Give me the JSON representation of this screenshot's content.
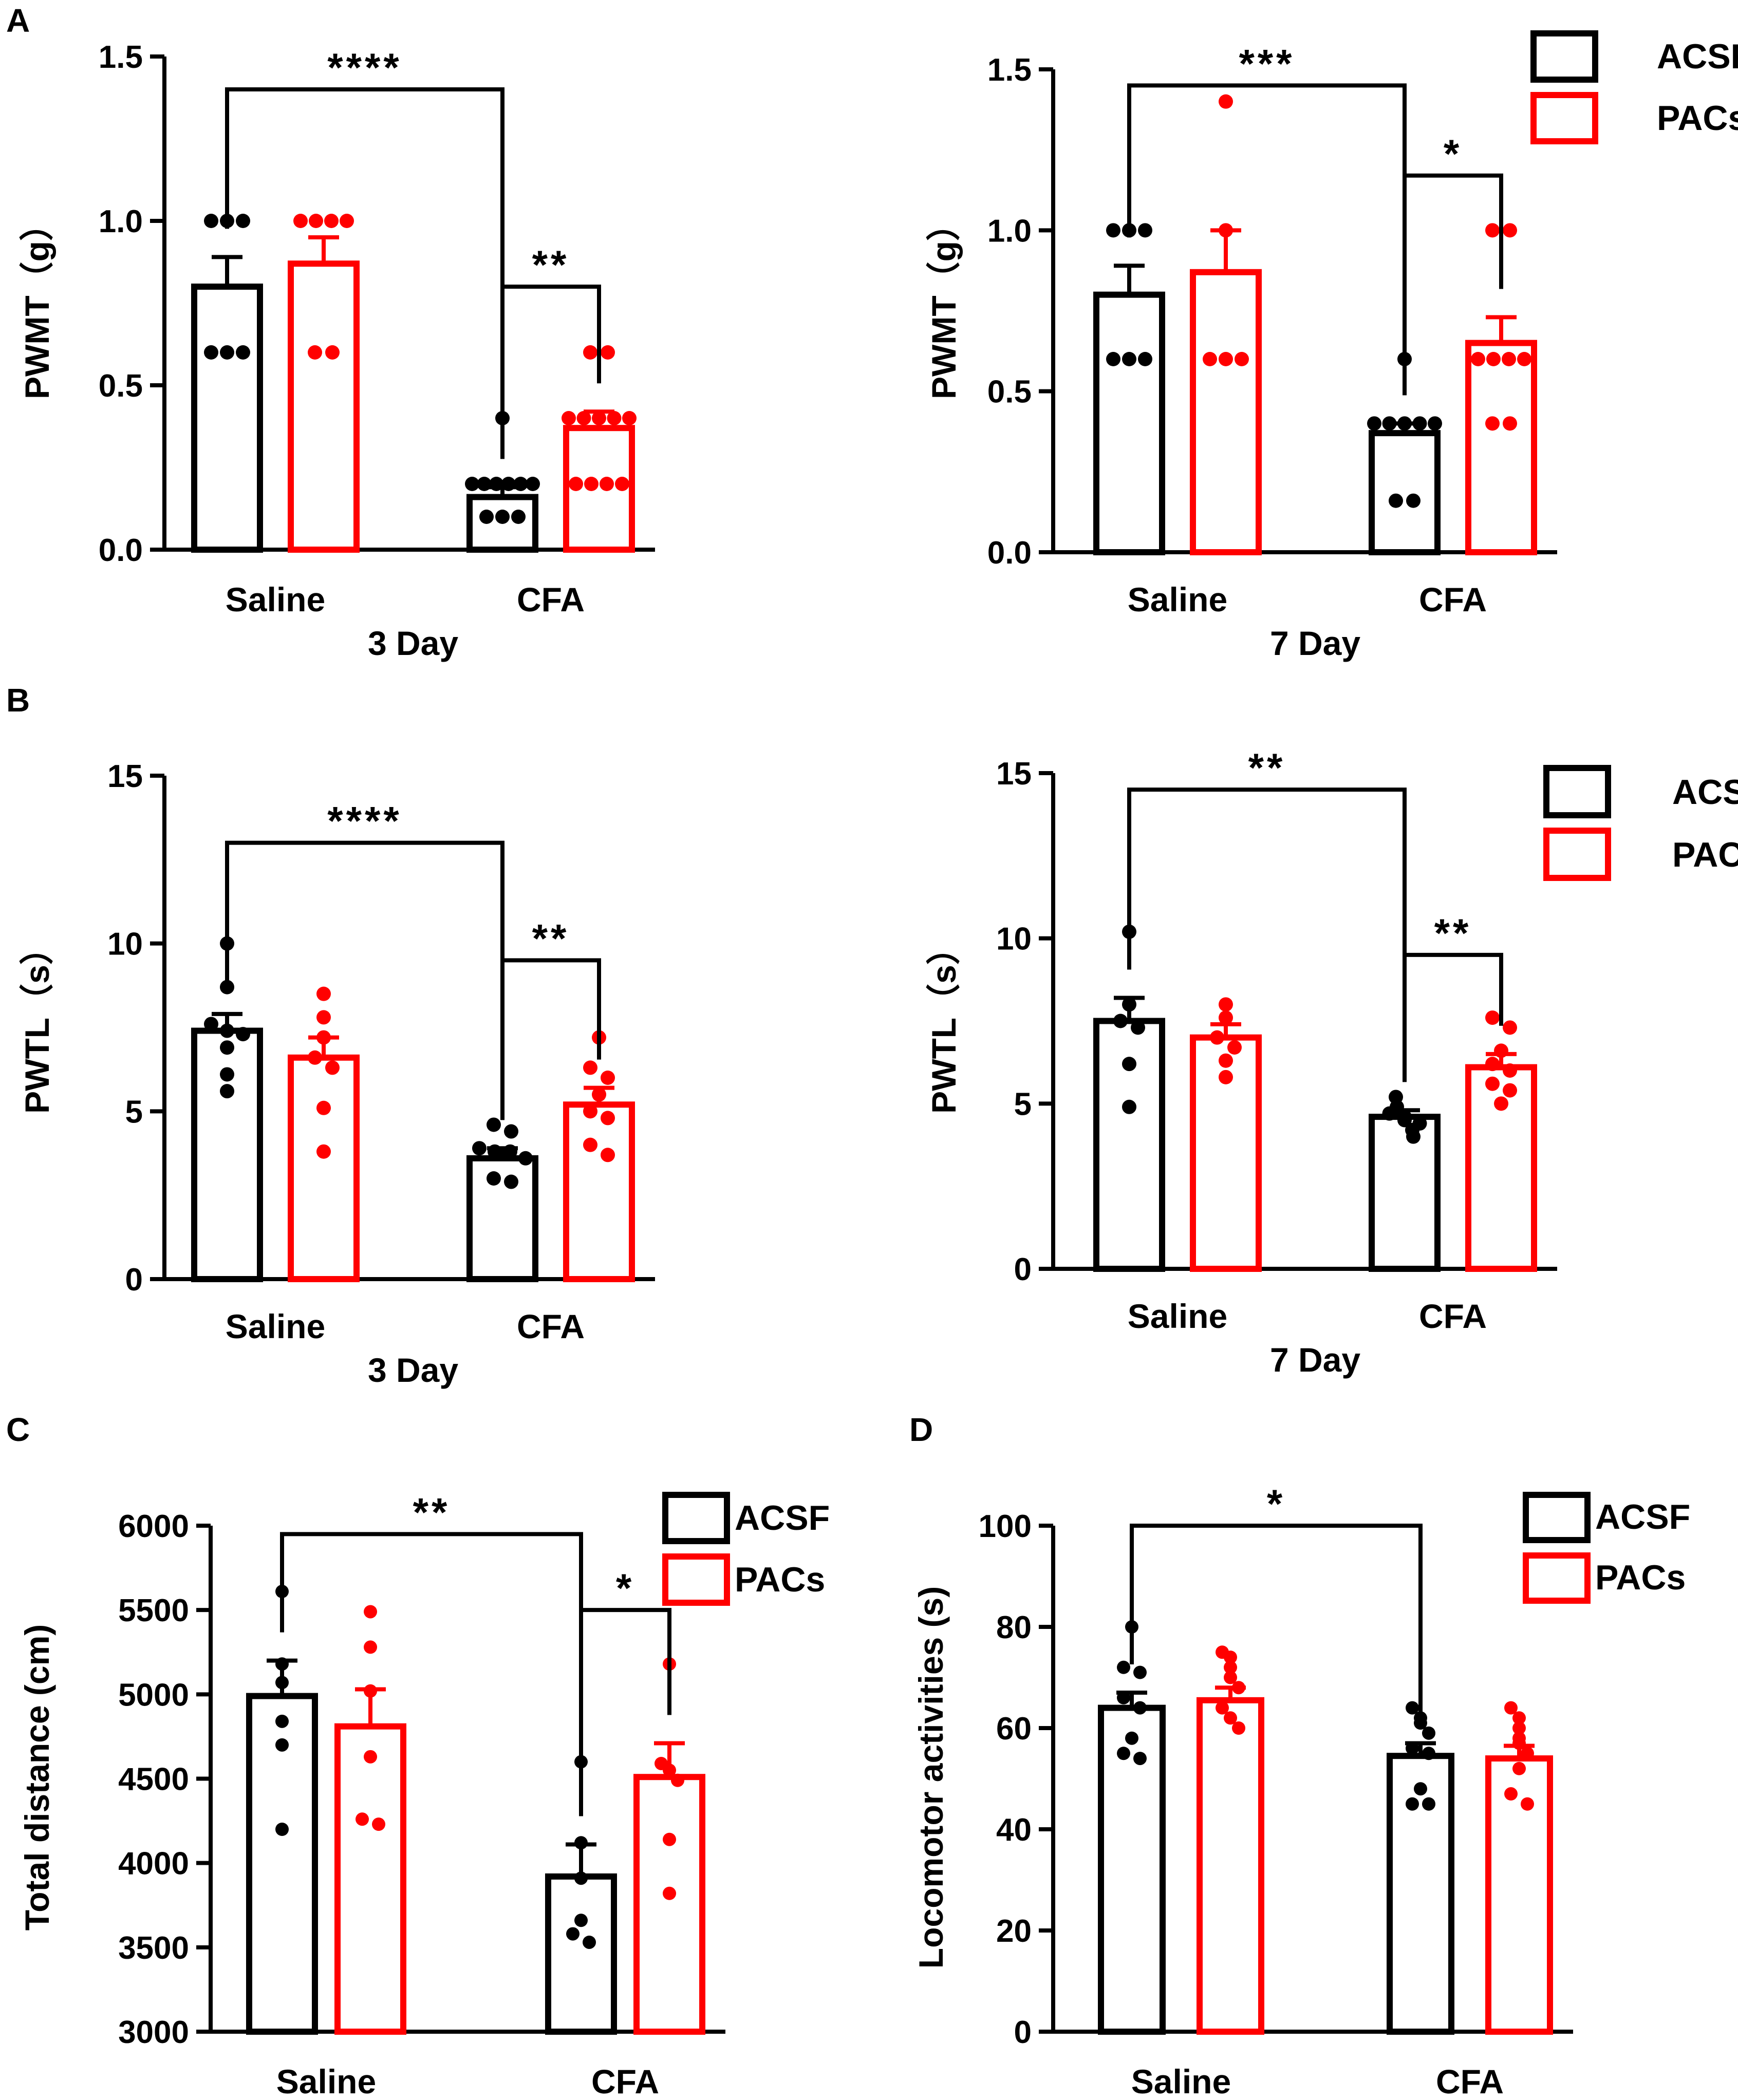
{
  "colors": {
    "acsf": "#000000",
    "pacs": "#ff0000",
    "axis": "#000000",
    "background": "#ffffff"
  },
  "legend": {
    "acsf": "ACSF",
    "pacs": "PACs"
  },
  "chart_data": [
    {
      "id": "A1",
      "panel_letter": "A",
      "type": "bar",
      "ylabel": "PWMT（g）",
      "xlabel": "3 Day",
      "categories": [
        "Saline",
        "CFA"
      ],
      "yticks": [
        "0.0",
        "0.5",
        "1.0",
        "1.5"
      ],
      "tickvals": [
        0,
        0.5,
        1.0,
        1.5
      ],
      "ylim": [
        0,
        1.5
      ],
      "legend": false,
      "series": [
        {
          "name": "ACSF",
          "values": [
            0.8,
            0.16
          ],
          "sem": [
            0.09,
            0.03
          ],
          "points": [
            [
              1.0,
              1.0,
              1.0,
              0.6,
              0.6,
              0.6
            ],
            [
              0.4,
              0.2,
              0.2,
              0.2,
              0.2,
              0.2,
              0.2,
              0.1,
              0.1,
              0.1
            ]
          ]
        },
        {
          "name": "PACs",
          "values": [
            0.87,
            0.37
          ],
          "sem": [
            0.08,
            0.05
          ],
          "points": [
            [
              1.0,
              1.0,
              1.0,
              1.0,
              0.6,
              0.6
            ],
            [
              0.6,
              0.6,
              0.4,
              0.4,
              0.4,
              0.4,
              0.4,
              0.2,
              0.2,
              0.2,
              0.2
            ]
          ]
        }
      ],
      "significance": [
        {
          "label": "****",
          "between": [
            0,
            2
          ],
          "level": 1.4
        },
        {
          "label": "**",
          "between": [
            2,
            3
          ],
          "level": 0.8
        }
      ]
    },
    {
      "id": "A2",
      "panel_letter": "",
      "type": "bar",
      "ylabel": "PWMT（g）",
      "xlabel": "7 Day",
      "categories": [
        "Saline",
        "CFA"
      ],
      "yticks": [
        "0.0",
        "0.5",
        "1.0",
        "1.5"
      ],
      "tickvals": [
        0,
        0.5,
        1.0,
        1.5
      ],
      "ylim": [
        0,
        1.5
      ],
      "legend": true,
      "series": [
        {
          "name": "ACSF",
          "values": [
            0.8,
            0.37
          ],
          "sem": [
            0.09,
            0.03
          ],
          "points": [
            [
              1.0,
              1.0,
              1.0,
              0.6,
              0.6,
              0.6
            ],
            [
              0.6,
              0.4,
              0.4,
              0.4,
              0.4,
              0.4,
              0.16,
              0.16
            ]
          ]
        },
        {
          "name": "PACs",
          "values": [
            0.87,
            0.65
          ],
          "sem": [
            0.13,
            0.08
          ],
          "points": [
            [
              1.4,
              1.0,
              0.6,
              0.6,
              0.6
            ],
            [
              1.0,
              1.0,
              0.6,
              0.6,
              0.6,
              0.6,
              0.4,
              0.4
            ]
          ]
        }
      ],
      "significance": [
        {
          "label": "***",
          "between": [
            0,
            2
          ],
          "level": 1.45
        },
        {
          "label": "*",
          "between": [
            2,
            3
          ],
          "level": 1.17
        }
      ]
    },
    {
      "id": "B1",
      "panel_letter": "B",
      "type": "bar",
      "ylabel": "PWTL（s）",
      "xlabel": "3 Day",
      "categories": [
        "Saline",
        "CFA"
      ],
      "yticks": [
        "0",
        "5",
        "10",
        "15"
      ],
      "tickvals": [
        0,
        5,
        10,
        15
      ],
      "ylim": [
        0,
        15
      ],
      "legend": false,
      "series": [
        {
          "name": "ACSF",
          "values": [
            7.4,
            3.6
          ],
          "sem": [
            0.5,
            0.3
          ],
          "points": [
            [
              10.0,
              8.7,
              7.6,
              7.4,
              7.3,
              6.9,
              6.1,
              5.6
            ],
            [
              4.6,
              4.4,
              3.9,
              3.8,
              3.8,
              3.6,
              3.0,
              2.9
            ]
          ]
        },
        {
          "name": "PACs",
          "values": [
            6.6,
            5.2
          ],
          "sem": [
            0.6,
            0.5
          ],
          "points": [
            [
              8.5,
              7.8,
              7.2,
              6.6,
              6.3,
              5.1,
              3.8
            ],
            [
              7.2,
              6.3,
              6.0,
              5.5,
              5.0,
              4.8,
              4.0,
              3.7
            ]
          ]
        }
      ],
      "significance": [
        {
          "label": "****",
          "between": [
            0,
            2
          ],
          "level": 13.0
        },
        {
          "label": "**",
          "between": [
            2,
            3
          ],
          "level": 9.5
        }
      ]
    },
    {
      "id": "B2",
      "panel_letter": "",
      "type": "bar",
      "ylabel": "PWTL（s）",
      "xlabel": "7 Day",
      "categories": [
        "Saline",
        "CFA"
      ],
      "yticks": [
        "0",
        "5",
        "10",
        "15"
      ],
      "tickvals": [
        0,
        5,
        10,
        15
      ],
      "ylim": [
        0,
        15
      ],
      "legend": true,
      "series": [
        {
          "name": "ACSF",
          "values": [
            7.5,
            4.6
          ],
          "sem": [
            0.7,
            0.2
          ],
          "points": [
            [
              10.2,
              8.0,
              7.5,
              7.3,
              6.2,
              4.9
            ],
            [
              5.2,
              4.9,
              4.7,
              4.6,
              4.5,
              4.4,
              4.2,
              4.0
            ]
          ]
        },
        {
          "name": "PACs",
          "values": [
            7.0,
            6.1
          ],
          "sem": [
            0.4,
            0.4
          ],
          "points": [
            [
              8.0,
              7.6,
              7.0,
              6.7,
              6.3,
              5.8
            ],
            [
              7.6,
              7.3,
              6.6,
              6.2,
              6.0,
              5.6,
              5.4,
              5.0
            ]
          ]
        }
      ],
      "significance": [
        {
          "label": "**",
          "between": [
            0,
            2
          ],
          "level": 14.5
        },
        {
          "label": "**",
          "between": [
            2,
            3
          ],
          "level": 9.5
        }
      ]
    },
    {
      "id": "C",
      "panel_letter": "C",
      "type": "bar",
      "ylabel": "Total distance (cm)",
      "xlabel": "",
      "categories": [
        "Saline",
        "CFA"
      ],
      "yticks": [
        "3000",
        "3500",
        "4000",
        "4500",
        "5000",
        "5500",
        "6000"
      ],
      "tickvals": [
        3000,
        3500,
        4000,
        4500,
        5000,
        5500,
        6000
      ],
      "ylim": [
        3000,
        6000
      ],
      "legend": true,
      "series": [
        {
          "name": "ACSF",
          "values": [
            4990,
            3920
          ],
          "sem": [
            210,
            190
          ],
          "points": [
            [
              5610,
              5180,
              5070,
              4840,
              4700,
              4200
            ],
            [
              4600,
              4120,
              3910,
              3660,
              3580,
              3530
            ]
          ]
        },
        {
          "name": "PACs",
          "values": [
            4810,
            4510
          ],
          "sem": [
            220,
            200
          ],
          "points": [
            [
              5490,
              5280,
              5020,
              4630,
              4260,
              4230
            ],
            [
              5180,
              4590,
              4550,
              4490,
              4140,
              3820
            ]
          ]
        }
      ],
      "significance": [
        {
          "label": "**",
          "between": [
            0,
            2
          ],
          "level": 5950
        },
        {
          "label": "*",
          "between": [
            2,
            3
          ],
          "level": 5500
        }
      ]
    },
    {
      "id": "D",
      "panel_letter": "D",
      "type": "bar",
      "ylabel": "Locomotor activities (s)",
      "xlabel": "",
      "categories": [
        "Saline",
        "CFA"
      ],
      "yticks": [
        "0",
        "20",
        "40",
        "60",
        "80",
        "100"
      ],
      "tickvals": [
        0,
        20,
        40,
        60,
        80,
        100
      ],
      "ylim": [
        0,
        100
      ],
      "legend": true,
      "series": [
        {
          "name": "ACSF",
          "values": [
            64,
            54.5
          ],
          "sem": [
            3,
            2.5
          ],
          "points": [
            [
              80,
              72,
              71,
              66,
              64,
              58,
              55,
              54
            ],
            [
              64,
              62,
              61,
              59,
              56,
              55,
              48,
              45,
              45
            ]
          ]
        },
        {
          "name": "PACs",
          "values": [
            65.5,
            54
          ],
          "sem": [
            2.5,
            2.5
          ],
          "points": [
            [
              75,
              74,
              72,
              70,
              68,
              64,
              62,
              60
            ],
            [
              64,
              62,
              60,
              58,
              57,
              55,
              52,
              47,
              45
            ]
          ]
        }
      ],
      "significance": [
        {
          "label": "*",
          "between": [
            0,
            2
          ],
          "level": 100
        }
      ]
    }
  ]
}
